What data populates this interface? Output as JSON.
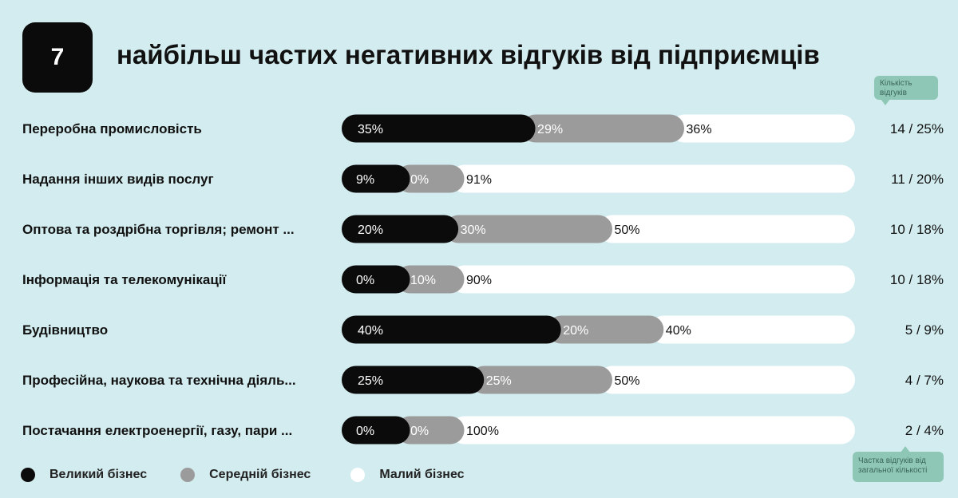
{
  "header": {
    "number": "7",
    "title": "найбільш частих негативних відгуків від підприємців"
  },
  "tooltips": {
    "count": "Кількість відгуків",
    "share": "Частка відгуків від загальної кількості"
  },
  "colors": {
    "large": "#0b0b0b",
    "medium": "#9b9b9b",
    "small": "#ffffff",
    "background": "#d3ecef"
  },
  "chart_data": {
    "type": "bar",
    "orientation": "horizontal",
    "stacked": true,
    "categories": [
      "Переробна промисловість",
      "Надання інших видів послуг",
      "Оптова та роздрібна торгівля; ремонт ...",
      "Інформація та телекомунікації",
      "Будівництво",
      "Професійна, наукова та технічна діяль...",
      "Постачання електроенергії, газу, пари ..."
    ],
    "series": [
      {
        "name": "Великий бізнес",
        "values": [
          35,
          9,
          20,
          0,
          40,
          25,
          0
        ]
      },
      {
        "name": "Середній бізнес",
        "values": [
          29,
          0,
          30,
          10,
          20,
          25,
          0
        ]
      },
      {
        "name": "Малий бізнес",
        "values": [
          36,
          91,
          50,
          90,
          40,
          50,
          100
        ]
      }
    ],
    "counts": [
      "14 / 25%",
      "11 / 20%",
      "10 / 18%",
      "10 / 18%",
      "5 / 9%",
      "4 / 7%",
      "2 / 4%"
    ],
    "xlim": [
      0,
      100
    ],
    "legend_position": "bottom-left"
  }
}
